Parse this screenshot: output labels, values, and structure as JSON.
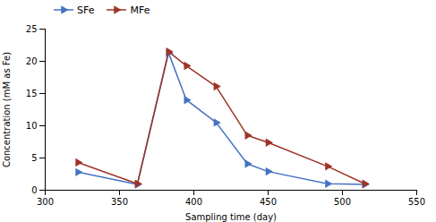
{
  "chart_data": {
    "type": "line",
    "xlabel": "Sampling time (day)",
    "ylabel": "Concentration (mM as Fe)",
    "x": [
      322,
      362,
      383,
      395,
      415,
      436,
      450,
      490,
      515
    ],
    "series": [
      {
        "name": "SFe",
        "color": "#4472c4",
        "marker": "triangle-right",
        "values": [
          2.8,
          0.9,
          21.3,
          14.0,
          10.5,
          4.1,
          2.9,
          1.0,
          0.9
        ]
      },
      {
        "name": "MFe",
        "color": "#9e3327",
        "marker": "triangle-right",
        "values": [
          4.3,
          1.0,
          21.5,
          19.3,
          16.1,
          8.5,
          7.4,
          3.7,
          1.0
        ]
      }
    ],
    "xlim": [
      300,
      550
    ],
    "ylim": [
      0,
      25
    ],
    "xticks": [
      300,
      350,
      400,
      450,
      500,
      550
    ],
    "yticks": [
      0,
      5,
      10,
      15,
      20,
      25
    ],
    "grid": false,
    "legend": "upper left"
  }
}
